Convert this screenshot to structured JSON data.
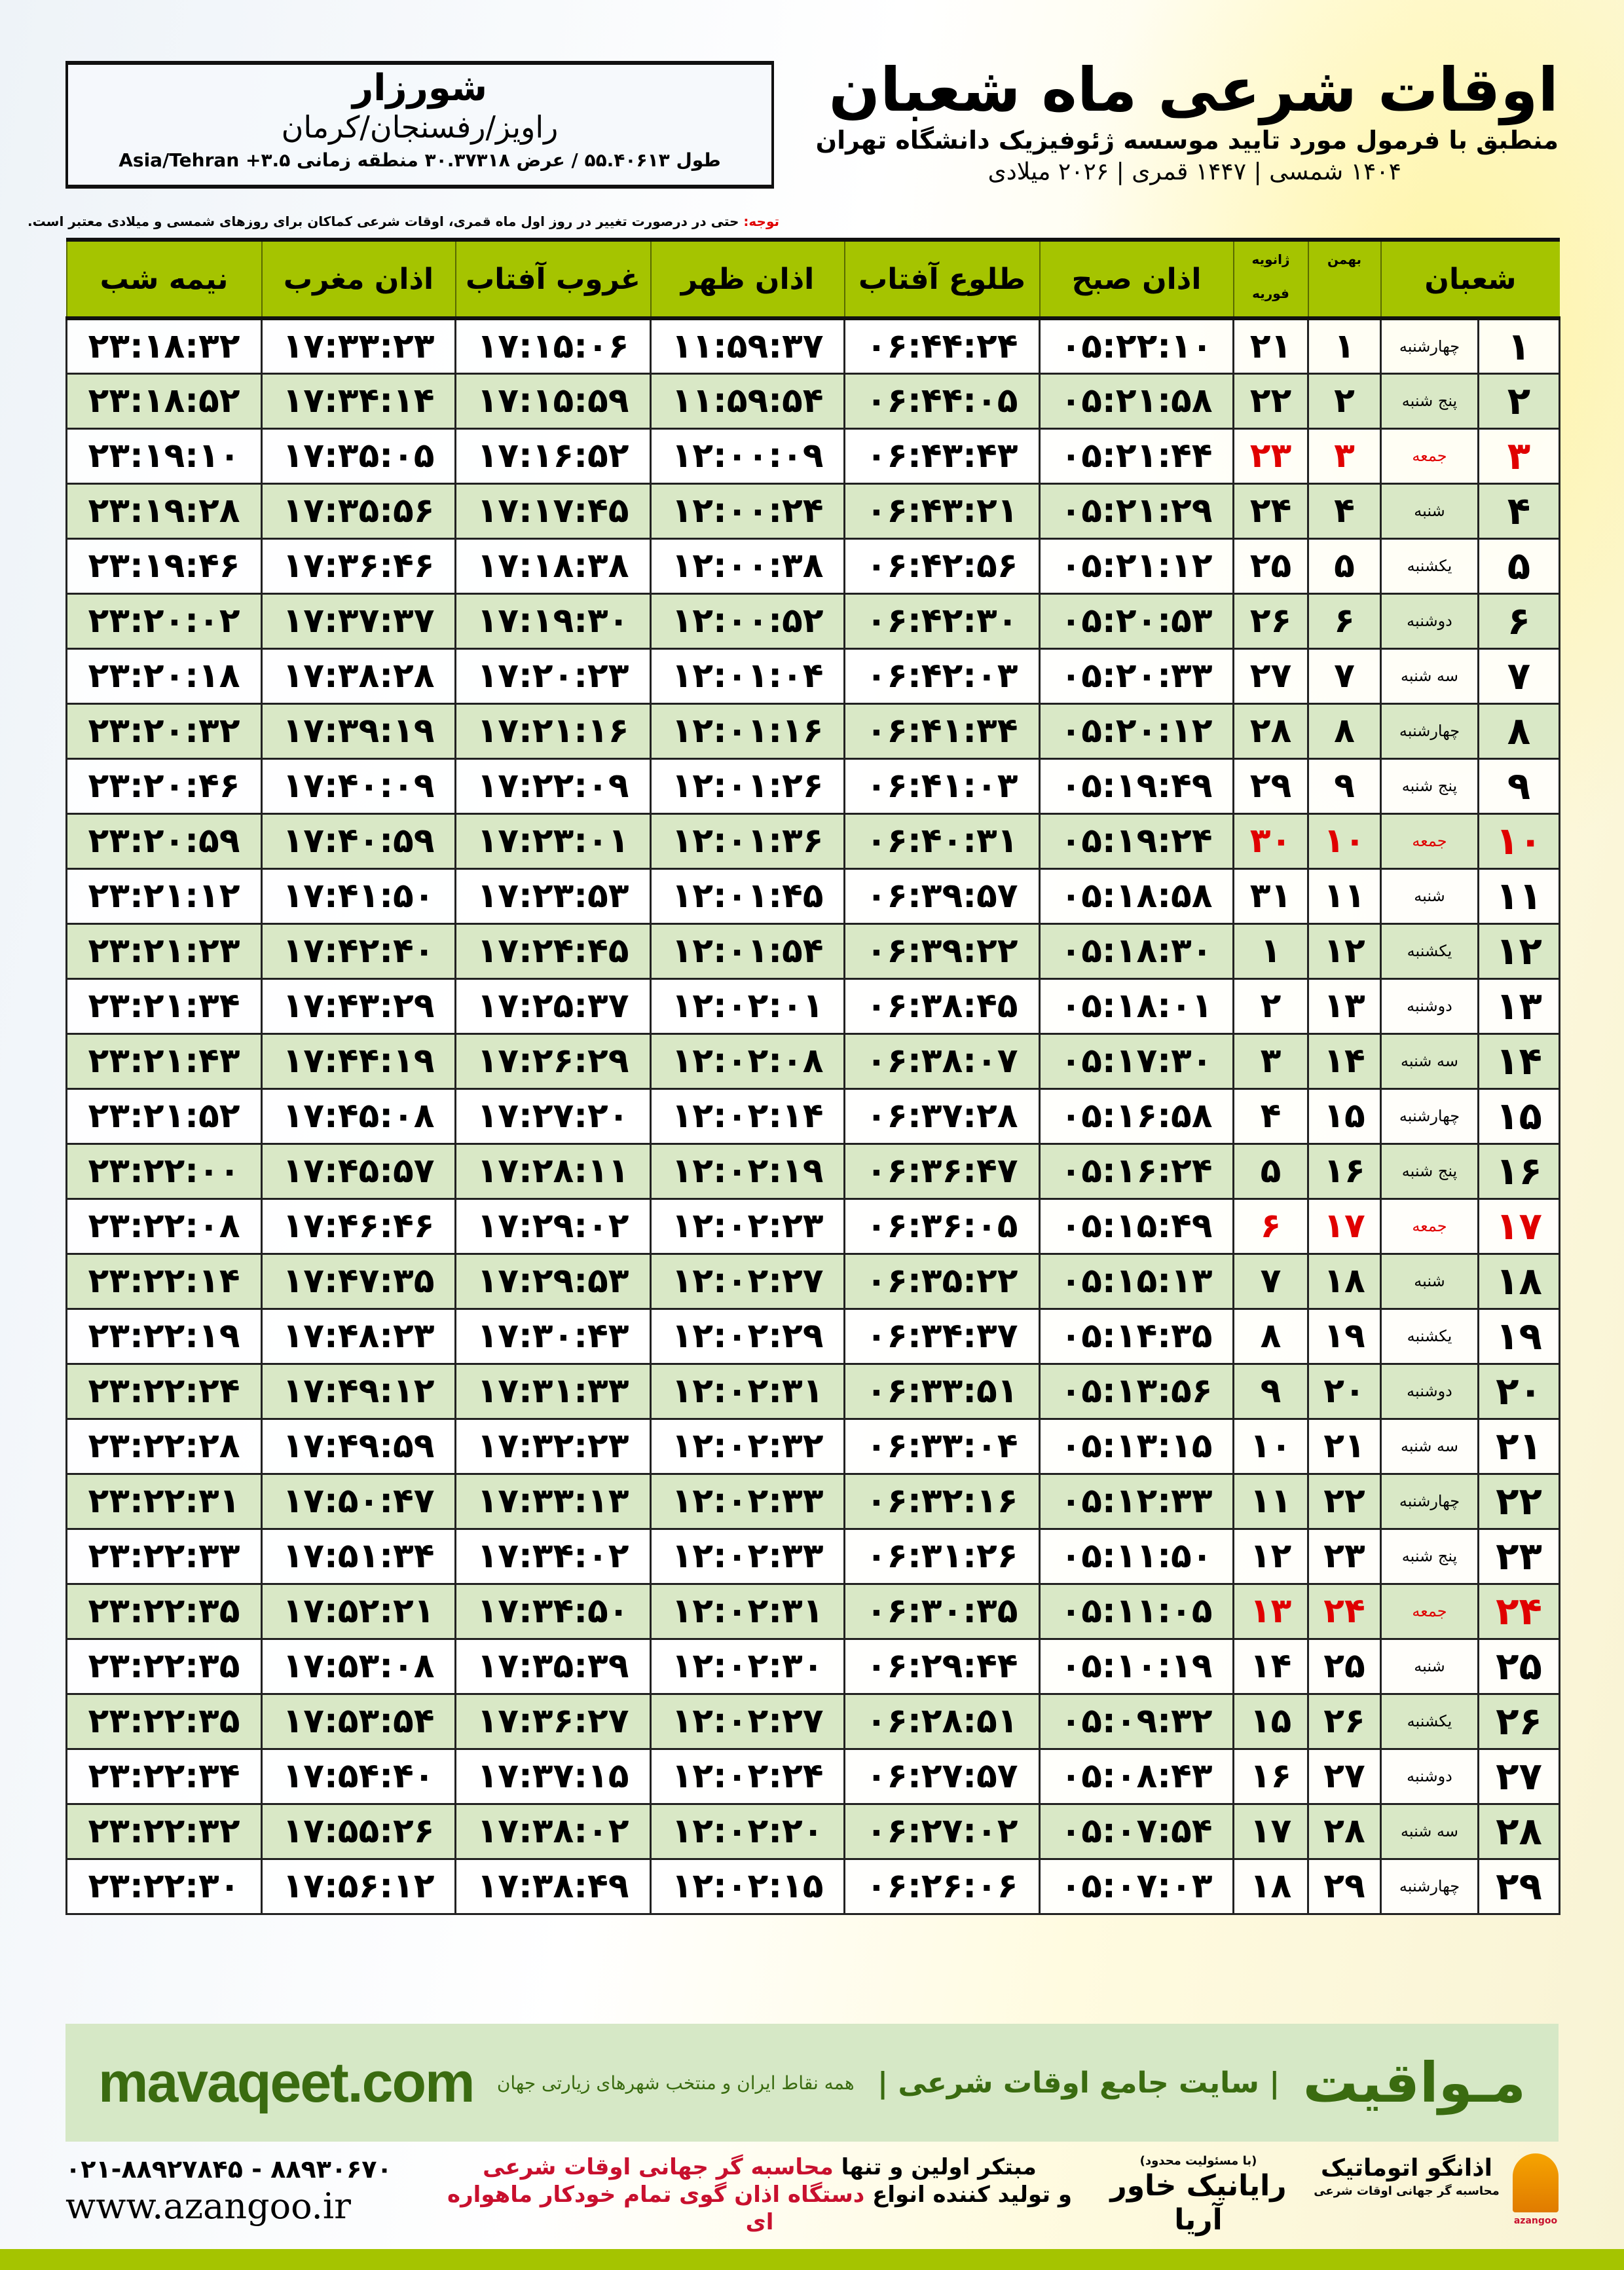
{
  "location": {
    "city": "شورزار",
    "region": "راویز/رفسنجان/کرمان",
    "coords": "طول ۵۵.۴۰۶۱۳ / عرض ۳۰.۳۷۳۱۸ منطقه زمانی ۳.۵+ Asia/Tehran"
  },
  "header": {
    "title": "اوقات شرعی ماه شعبان",
    "subtitle": "منطبق با فرمول مورد تایید موسسه ژئوفیزیک دانشگاه تهران",
    "years": "۱۴۰۴ شمسی | ۱۴۴۷ قمری | ۲۰۲۶ میلادی"
  },
  "note": {
    "label": "توجه:",
    "text": " حتی در درصورت تغییر در روز اول ماه قمری، اوقات شرعی کماکان برای روزهای شمسی و میلادی معتبر است."
  },
  "colors": {
    "header_green": "#a5c400",
    "alt_row": "#d9e8c6",
    "holiday_red": "#e00000",
    "brand_green": "#3a6b10"
  },
  "table": {
    "headers": {
      "shaban": "شعبان",
      "bahman": "بهمن",
      "greg_top": "ژانویه",
      "greg_bottom": "فوریه",
      "sobh": "اذان صبح",
      "tolu": "طلوع آفتاب",
      "zohr": "اذان ظهر",
      "ghurub": "غروب آفتاب",
      "maghreb": "اذان مغرب",
      "nimeshab": "نیمه شب"
    },
    "rows": [
      [
        "۱",
        "چهارشنبه",
        "۱",
        "۲۱",
        "۰۵:۲۲:۱۰",
        "۰۶:۴۴:۲۴",
        "۱۱:۵۹:۳۷",
        "۱۷:۱۵:۰۶",
        "۱۷:۳۳:۲۳",
        "۲۳:۱۸:۳۲",
        false
      ],
      [
        "۲",
        "پنج شنبه",
        "۲",
        "۲۲",
        "۰۵:۲۱:۵۸",
        "۰۶:۴۴:۰۵",
        "۱۱:۵۹:۵۴",
        "۱۷:۱۵:۵۹",
        "۱۷:۳۴:۱۴",
        "۲۳:۱۸:۵۲",
        false
      ],
      [
        "۳",
        "جمعه",
        "۳",
        "۲۳",
        "۰۵:۲۱:۴۴",
        "۰۶:۴۳:۴۳",
        "۱۲:۰۰:۰۹",
        "۱۷:۱۶:۵۲",
        "۱۷:۳۵:۰۵",
        "۲۳:۱۹:۱۰",
        true
      ],
      [
        "۴",
        "شنبه",
        "۴",
        "۲۴",
        "۰۵:۲۱:۲۹",
        "۰۶:۴۳:۲۱",
        "۱۲:۰۰:۲۴",
        "۱۷:۱۷:۴۵",
        "۱۷:۳۵:۵۶",
        "۲۳:۱۹:۲۸",
        false
      ],
      [
        "۵",
        "یکشنبه",
        "۵",
        "۲۵",
        "۰۵:۲۱:۱۲",
        "۰۶:۴۲:۵۶",
        "۱۲:۰۰:۳۸",
        "۱۷:۱۸:۳۸",
        "۱۷:۳۶:۴۶",
        "۲۳:۱۹:۴۶",
        false
      ],
      [
        "۶",
        "دوشنبه",
        "۶",
        "۲۶",
        "۰۵:۲۰:۵۳",
        "۰۶:۴۲:۳۰",
        "۱۲:۰۰:۵۲",
        "۱۷:۱۹:۳۰",
        "۱۷:۳۷:۳۷",
        "۲۳:۲۰:۰۲",
        false
      ],
      [
        "۷",
        "سه شنبه",
        "۷",
        "۲۷",
        "۰۵:۲۰:۳۳",
        "۰۶:۴۲:۰۳",
        "۱۲:۰۱:۰۴",
        "۱۷:۲۰:۲۳",
        "۱۷:۳۸:۲۸",
        "۲۳:۲۰:۱۸",
        false
      ],
      [
        "۸",
        "چهارشنبه",
        "۸",
        "۲۸",
        "۰۵:۲۰:۱۲",
        "۰۶:۴۱:۳۴",
        "۱۲:۰۱:۱۶",
        "۱۷:۲۱:۱۶",
        "۱۷:۳۹:۱۹",
        "۲۳:۲۰:۳۲",
        false
      ],
      [
        "۹",
        "پنج شنبه",
        "۹",
        "۲۹",
        "۰۵:۱۹:۴۹",
        "۰۶:۴۱:۰۳",
        "۱۲:۰۱:۲۶",
        "۱۷:۲۲:۰۹",
        "۱۷:۴۰:۰۹",
        "۲۳:۲۰:۴۶",
        false
      ],
      [
        "۱۰",
        "جمعه",
        "۱۰",
        "۳۰",
        "۰۵:۱۹:۲۴",
        "۰۶:۴۰:۳۱",
        "۱۲:۰۱:۳۶",
        "۱۷:۲۳:۰۱",
        "۱۷:۴۰:۵۹",
        "۲۳:۲۰:۵۹",
        true
      ],
      [
        "۱۱",
        "شنبه",
        "۱۱",
        "۳۱",
        "۰۵:۱۸:۵۸",
        "۰۶:۳۹:۵۷",
        "۱۲:۰۱:۴۵",
        "۱۷:۲۳:۵۳",
        "۱۷:۴۱:۵۰",
        "۲۳:۲۱:۱۲",
        false
      ],
      [
        "۱۲",
        "یکشنبه",
        "۱۲",
        "۱",
        "۰۵:۱۸:۳۰",
        "۰۶:۳۹:۲۲",
        "۱۲:۰۱:۵۴",
        "۱۷:۲۴:۴۵",
        "۱۷:۴۲:۴۰",
        "۲۳:۲۱:۲۳",
        false
      ],
      [
        "۱۳",
        "دوشنبه",
        "۱۳",
        "۲",
        "۰۵:۱۸:۰۱",
        "۰۶:۳۸:۴۵",
        "۱۲:۰۲:۰۱",
        "۱۷:۲۵:۳۷",
        "۱۷:۴۳:۲۹",
        "۲۳:۲۱:۳۴",
        false
      ],
      [
        "۱۴",
        "سه شنبه",
        "۱۴",
        "۳",
        "۰۵:۱۷:۳۰",
        "۰۶:۳۸:۰۷",
        "۱۲:۰۲:۰۸",
        "۱۷:۲۶:۲۹",
        "۱۷:۴۴:۱۹",
        "۲۳:۲۱:۴۳",
        false
      ],
      [
        "۱۵",
        "چهارشنبه",
        "۱۵",
        "۴",
        "۰۵:۱۶:۵۸",
        "۰۶:۳۷:۲۸",
        "۱۲:۰۲:۱۴",
        "۱۷:۲۷:۲۰",
        "۱۷:۴۵:۰۸",
        "۲۳:۲۱:۵۲",
        false
      ],
      [
        "۱۶",
        "پنج شنبه",
        "۱۶",
        "۵",
        "۰۵:۱۶:۲۴",
        "۰۶:۳۶:۴۷",
        "۱۲:۰۲:۱۹",
        "۱۷:۲۸:۱۱",
        "۱۷:۴۵:۵۷",
        "۲۳:۲۲:۰۰",
        false
      ],
      [
        "۱۷",
        "جمعه",
        "۱۷",
        "۶",
        "۰۵:۱۵:۴۹",
        "۰۶:۳۶:۰۵",
        "۱۲:۰۲:۲۳",
        "۱۷:۲۹:۰۲",
        "۱۷:۴۶:۴۶",
        "۲۳:۲۲:۰۸",
        true
      ],
      [
        "۱۸",
        "شنبه",
        "۱۸",
        "۷",
        "۰۵:۱۵:۱۳",
        "۰۶:۳۵:۲۲",
        "۱۲:۰۲:۲۷",
        "۱۷:۲۹:۵۳",
        "۱۷:۴۷:۳۵",
        "۲۳:۲۲:۱۴",
        false
      ],
      [
        "۱۹",
        "یکشنبه",
        "۱۹",
        "۸",
        "۰۵:۱۴:۳۵",
        "۰۶:۳۴:۳۷",
        "۱۲:۰۲:۲۹",
        "۱۷:۳۰:۴۳",
        "۱۷:۴۸:۲۳",
        "۲۳:۲۲:۱۹",
        false
      ],
      [
        "۲۰",
        "دوشنبه",
        "۲۰",
        "۹",
        "۰۵:۱۳:۵۶",
        "۰۶:۳۳:۵۱",
        "۱۲:۰۲:۳۱",
        "۱۷:۳۱:۳۳",
        "۱۷:۴۹:۱۲",
        "۲۳:۲۲:۲۴",
        false
      ],
      [
        "۲۱",
        "سه شنبه",
        "۲۱",
        "۱۰",
        "۰۵:۱۳:۱۵",
        "۰۶:۳۳:۰۴",
        "۱۲:۰۲:۳۲",
        "۱۷:۳۲:۲۳",
        "۱۷:۴۹:۵۹",
        "۲۳:۲۲:۲۸",
        false
      ],
      [
        "۲۲",
        "چهارشنبه",
        "۲۲",
        "۱۱",
        "۰۵:۱۲:۳۳",
        "۰۶:۳۲:۱۶",
        "۱۲:۰۲:۳۳",
        "۱۷:۳۳:۱۳",
        "۱۷:۵۰:۴۷",
        "۲۳:۲۲:۳۱",
        false
      ],
      [
        "۲۳",
        "پنج شنبه",
        "۲۳",
        "۱۲",
        "۰۵:۱۱:۵۰",
        "۰۶:۳۱:۲۶",
        "۱۲:۰۲:۳۳",
        "۱۷:۳۴:۰۲",
        "۱۷:۵۱:۳۴",
        "۲۳:۲۲:۳۳",
        false
      ],
      [
        "۲۴",
        "جمعه",
        "۲۴",
        "۱۳",
        "۰۵:۱۱:۰۵",
        "۰۶:۳۰:۳۵",
        "۱۲:۰۲:۳۱",
        "۱۷:۳۴:۵۰",
        "۱۷:۵۲:۲۱",
        "۲۳:۲۲:۳۵",
        true
      ],
      [
        "۲۵",
        "شنبه",
        "۲۵",
        "۱۴",
        "۰۵:۱۰:۱۹",
        "۰۶:۲۹:۴۴",
        "۱۲:۰۲:۳۰",
        "۱۷:۳۵:۳۹",
        "۱۷:۵۳:۰۸",
        "۲۳:۲۲:۳۵",
        false
      ],
      [
        "۲۶",
        "یکشنبه",
        "۲۶",
        "۱۵",
        "۰۵:۰۹:۳۲",
        "۰۶:۲۸:۵۱",
        "۱۲:۰۲:۲۷",
        "۱۷:۳۶:۲۷",
        "۱۷:۵۳:۵۴",
        "۲۳:۲۲:۳۵",
        false
      ],
      [
        "۲۷",
        "دوشنبه",
        "۲۷",
        "۱۶",
        "۰۵:۰۸:۴۳",
        "۰۶:۲۷:۵۷",
        "۱۲:۰۲:۲۴",
        "۱۷:۳۷:۱۵",
        "۱۷:۵۴:۴۰",
        "۲۳:۲۲:۳۴",
        false
      ],
      [
        "۲۸",
        "سه شنبه",
        "۲۸",
        "۱۷",
        "۰۵:۰۷:۵۴",
        "۰۶:۲۷:۰۲",
        "۱۲:۰۲:۲۰",
        "۱۷:۳۸:۰۲",
        "۱۷:۵۵:۲۶",
        "۲۳:۲۲:۳۲",
        false
      ],
      [
        "۲۹",
        "چهارشنبه",
        "۲۹",
        "۱۸",
        "۰۵:۰۷:۰۳",
        "۰۶:۲۶:۰۶",
        "۱۲:۰۲:۱۵",
        "۱۷:۳۸:۴۹",
        "۱۷:۵۶:۱۲",
        "۲۳:۲۲:۳۰",
        false
      ]
    ]
  },
  "footer": {
    "brand": "مـواقیت",
    "slogan": "| سایت جامع اوقات شرعی |",
    "slogan_sub": "همه نقاط ایران و منتخب شهرهای زیارتی جهان",
    "site": "mavaqeet.com",
    "phones": "۰۲۱-۸۸۹۲۷۸۴۵ - ۸۸۹۳۰۶۷۰",
    "www": "www.azangoo.ir",
    "promo_line1_a": "مبتکر اولین و تنها ",
    "promo_line1_b": "محاسبه گر جهانی اوقات شرعی",
    "promo_line2_a": "و تولید کننده انواع ",
    "promo_line2_b": "دستگاه اذان گوی تمام خودکار ماهواره ای",
    "logo1_small": "(با مسئولیت محدود)",
    "logo1": "رایانیک خاور آریا",
    "logo2": "اذانگو اتوماتیک",
    "logo2_small": "محاسبه گر جهانی اوقات شرعی",
    "logo2_latin": "azangoo"
  }
}
